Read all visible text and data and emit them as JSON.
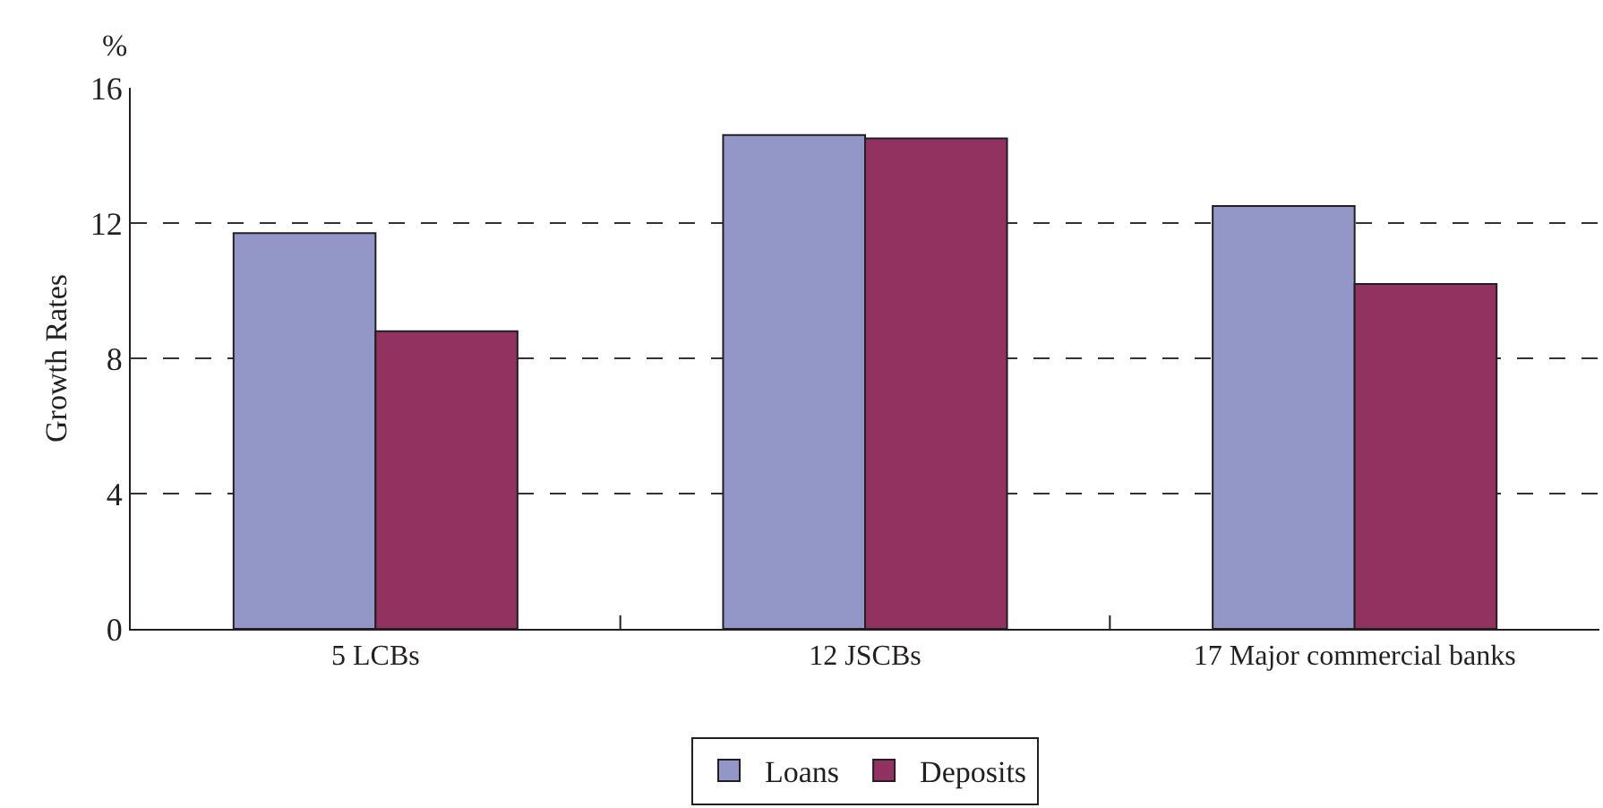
{
  "chart_data": {
    "type": "bar",
    "ylabel": "Growth Rates",
    "annotations": [
      "%"
    ],
    "categories": [
      "5 LCBs",
      "12 JSCBs",
      "17 Major commercial banks"
    ],
    "series": [
      {
        "name": "Loans",
        "color": "#9397c8",
        "values": [
          11.7,
          14.6,
          12.5
        ]
      },
      {
        "name": "Deposits",
        "color": "#913260",
        "values": [
          8.8,
          14.5,
          10.2
        ]
      }
    ],
    "ylim": [
      0,
      16
    ],
    "yticks": [
      0,
      4,
      8,
      12,
      16
    ],
    "grid": "y",
    "legend": "bottom"
  }
}
